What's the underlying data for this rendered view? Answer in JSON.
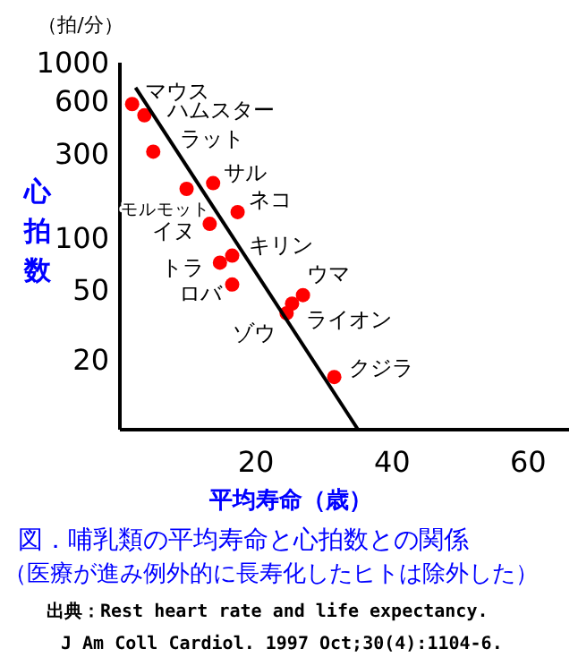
{
  "chart_data": {
    "type": "scatter",
    "title": "図．哺乳類の平均寿命と心拍数との関係",
    "subtitle": "（医療が進み例外的に長寿化したヒトは除外した）",
    "xlabel": "平均寿命（歳）",
    "ylabel": "心拍数",
    "annotations": [
      "（拍/分）",
      {
        "text": "マウス",
        "x": 1.8,
        "y": 580
      },
      {
        "text": "ハムスター",
        "x": 3.6,
        "y": 500
      },
      {
        "text": "ラット",
        "x": 4.9,
        "y": 310
      },
      {
        "text": "モルモット",
        "x": 9.8,
        "y": 190
      },
      {
        "text": "サル",
        "x": 13.7,
        "y": 205
      },
      {
        "text": "ネコ",
        "x": 17.3,
        "y": 140
      },
      {
        "text": "イヌ",
        "x": 13.2,
        "y": 120
      },
      {
        "text": "キリン",
        "x": 16.5,
        "y": 79
      },
      {
        "text": "トラ",
        "x": 14.7,
        "y": 72
      },
      {
        "text": "ロバ",
        "x": 16.5,
        "y": 54
      },
      {
        "text": "ウマ",
        "x": 26.9,
        "y": 47
      },
      {
        "text": "ライオン",
        "x": 25.3,
        "y": 42
      },
      {
        "text": "ゾウ",
        "x": 24.5,
        "y": 37
      },
      {
        "text": "クジラ",
        "x": 31.5,
        "y": 16
      },
      "出典：Rest heart rate and life expectancy.",
      "J Am Coll Cardiol. 1997 Oct;30(4):1104-6."
    ],
    "series": [
      {
        "type": "scatter",
        "marker": "circle",
        "color": "#ff0000",
        "x": [
          1.8,
          3.6,
          4.9,
          9.8,
          13.7,
          17.3,
          13.2,
          16.5,
          14.7,
          16.5,
          26.9,
          25.3,
          24.5,
          31.5
        ],
        "values": [
          580,
          500,
          310,
          190,
          205,
          140,
          120,
          79,
          72,
          54,
          47,
          42,
          37,
          16
        ]
      },
      {
        "type": "line",
        "color": "#000000",
        "x": [
          2.3,
          35
        ],
        "values": [
          720,
          8
        ]
      }
    ],
    "xlim": [
      0,
      66
    ],
    "ylim": [
      8,
      1000
    ],
    "xticks": [
      20,
      40,
      60
    ],
    "yticks": [
      20,
      50,
      100,
      300,
      600,
      1000
    ],
    "log": true
  }
}
